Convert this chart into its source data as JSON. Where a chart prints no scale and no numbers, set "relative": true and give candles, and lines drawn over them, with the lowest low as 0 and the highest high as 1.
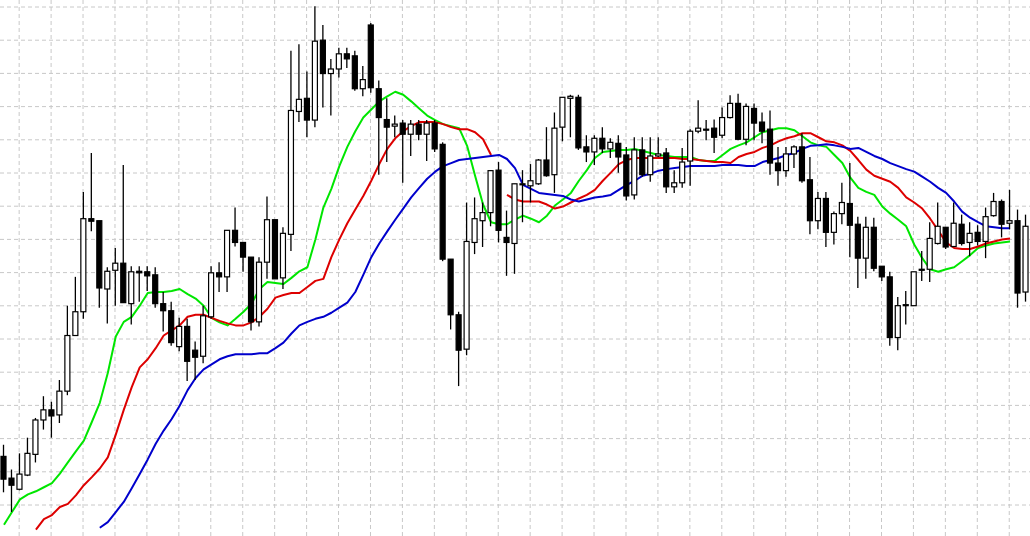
{
  "chart_data": {
    "type": "candlestick",
    "relative": true,
    "grid": true,
    "tick_labels": false,
    "categories": [
      null,
      null,
      null,
      null,
      null,
      null,
      null,
      null,
      null,
      null,
      null,
      null,
      null,
      null,
      null,
      null,
      null,
      null,
      null,
      null,
      null,
      null,
      null,
      null,
      null,
      null,
      null,
      null,
      null,
      null,
      null,
      null,
      null,
      null,
      null,
      null,
      null,
      null,
      null,
      null,
      null,
      null,
      null,
      null,
      null,
      null,
      null,
      null,
      null,
      null,
      null,
      null,
      null,
      null,
      null,
      null,
      null,
      null,
      null,
      null,
      null,
      null,
      null,
      null,
      null,
      null,
      null,
      null,
      null,
      null,
      null,
      null,
      null,
      null,
      null,
      null,
      null,
      null,
      null,
      null,
      null,
      null,
      null,
      null,
      null,
      null,
      null,
      null,
      null,
      null,
      null,
      null,
      null,
      null,
      null,
      null,
      null,
      null,
      null,
      null,
      null,
      null,
      null,
      null,
      null,
      null,
      null,
      null,
      null,
      null,
      null,
      null,
      null,
      null,
      null,
      null,
      null,
      null,
      null,
      null,
      null,
      null,
      null,
      null,
      null,
      null,
      null,
      null,
      null
    ],
    "ohlc": [
      [
        0.11,
        0.133,
        0.039,
        0.065
      ],
      [
        0.067,
        0.084,
        0,
        0.053
      ],
      [
        0.045,
        0.116,
        0.043,
        0.075
      ],
      [
        0.073,
        0.147,
        0.071,
        0.116
      ],
      [
        0.114,
        0.186,
        0.098,
        0.182
      ],
      [
        0.182,
        0.229,
        0.163,
        0.202
      ],
      [
        0.202,
        0.218,
        0.147,
        0.19
      ],
      [
        0.192,
        0.261,
        0.176,
        0.239
      ],
      [
        0.239,
        0.408,
        0.231,
        0.349
      ],
      [
        0.349,
        0.465,
        0.349,
        0.396
      ],
      [
        0.396,
        0.633,
        0.382,
        0.58
      ],
      [
        0.58,
        0.71,
        0.555,
        0.575
      ],
      [
        0.576,
        0.576,
        0.404,
        0.443
      ],
      [
        0.441,
        0.484,
        0.373,
        0.476
      ],
      [
        0.478,
        0.522,
        0.408,
        0.492
      ],
      [
        0.492,
        0.686,
        0.414,
        0.414
      ],
      [
        0.412,
        0.486,
        0.371,
        0.475
      ],
      [
        0.476,
        0.486,
        0.416,
        0.473
      ],
      [
        0.475,
        0.486,
        0.437,
        0.467
      ],
      [
        0.469,
        0.484,
        0.404,
        0.412
      ],
      [
        0.412,
        0.435,
        0.357,
        0.398
      ],
      [
        0.398,
        0.416,
        0.329,
        0.335
      ],
      [
        0.327,
        0.384,
        0.318,
        0.367
      ],
      [
        0.367,
        0.382,
        0.259,
        0.298
      ],
      [
        0.32,
        0.337,
        0.261,
        0.306
      ],
      [
        0.308,
        0.408,
        0.294,
        0.388
      ],
      [
        0.386,
        0.486,
        0.382,
        0.473
      ],
      [
        0.473,
        0.494,
        0.435,
        0.465
      ],
      [
        0.465,
        0.557,
        0.435,
        0.557
      ],
      [
        0.557,
        0.602,
        0.525,
        0.533
      ],
      [
        0.533,
        0.533,
        0.475,
        0.504
      ],
      [
        0.504,
        0.504,
        0.359,
        0.376
      ],
      [
        0.376,
        0.504,
        0.367,
        0.494
      ],
      [
        0.494,
        0.624,
        0.461,
        0.578
      ],
      [
        0.578,
        0.578,
        0.461,
        0.461
      ],
      [
        0.463,
        0.563,
        0.441,
        0.551
      ],
      [
        0.549,
        0.912,
        0.516,
        0.794
      ],
      [
        0.792,
        0.925,
        0.771,
        0.816
      ],
      [
        0.818,
        0.871,
        0.741,
        0.775
      ],
      [
        0.775,
        1,
        0.761,
        0.931
      ],
      [
        0.933,
        0.963,
        0.8,
        0.867
      ],
      [
        0.867,
        0.896,
        0.784,
        0.876
      ],
      [
        0.876,
        0.918,
        0.859,
        0.906
      ],
      [
        0.906,
        0.918,
        0.878,
        0.896
      ],
      [
        0.902,
        0.912,
        0.833,
        0.837
      ],
      [
        0.837,
        0.882,
        0.822,
        0.855
      ],
      [
        0.963,
        0.967,
        0.829,
        0.839
      ],
      [
        0.837,
        0.853,
        0.667,
        0.78
      ],
      [
        0.776,
        0.818,
        0.692,
        0.761
      ],
      [
        0.763,
        0.784,
        0.741,
        0.767
      ],
      [
        0.769,
        0.775,
        0.651,
        0.747
      ],
      [
        0.747,
        0.775,
        0.704,
        0.767
      ],
      [
        0.767,
        0.775,
        0.735,
        0.747
      ],
      [
        0.747,
        0.775,
        0.694,
        0.769
      ],
      [
        0.769,
        0.775,
        0.712,
        0.718
      ],
      [
        0.727,
        0.731,
        0.496,
        0.5
      ],
      [
        0.5,
        0.5,
        0.361,
        0.39
      ],
      [
        0.39,
        0.396,
        0.249,
        0.32
      ],
      [
        0.322,
        0.612,
        0.31,
        0.535
      ],
      [
        0.533,
        0.622,
        0.51,
        0.58
      ],
      [
        0.576,
        0.612,
        0.524,
        0.592
      ],
      [
        0.592,
        0.676,
        0.565,
        0.675
      ],
      [
        0.676,
        0.692,
        0.533,
        0.557
      ],
      [
        0.543,
        0.596,
        0.467,
        0.533
      ],
      [
        0.531,
        0.649,
        0.471,
        0.649
      ],
      [
        0.647,
        0.676,
        0.573,
        0.649
      ],
      [
        0.645,
        0.688,
        0.612,
        0.655
      ],
      [
        0.649,
        0.698,
        0.647,
        0.696
      ],
      [
        0.696,
        0.761,
        0.663,
        0.665
      ],
      [
        0.667,
        0.79,
        0.631,
        0.759
      ],
      [
        0.761,
        0.82,
        0.733,
        0.82
      ],
      [
        0.818,
        0.825,
        0.741,
        0.822
      ],
      [
        0.82,
        0.825,
        0.716,
        0.72
      ],
      [
        0.722,
        0.745,
        0.692,
        0.712
      ],
      [
        0.712,
        0.745,
        0.686,
        0.739
      ],
      [
        0.739,
        0.761,
        0.71,
        0.718
      ],
      [
        0.718,
        0.739,
        0.7,
        0.731
      ],
      [
        0.729,
        0.745,
        0.671,
        0.702
      ],
      [
        0.706,
        0.722,
        0.616,
        0.625
      ],
      [
        0.627,
        0.741,
        0.618,
        0.716
      ],
      [
        0.716,
        0.741,
        0.663,
        0.667
      ],
      [
        0.667,
        0.741,
        0.653,
        0.704
      ],
      [
        0.704,
        0.741,
        0.702,
        0.708
      ],
      [
        0.71,
        0.72,
        0.631,
        0.643
      ],
      [
        0.643,
        0.676,
        0.631,
        0.651
      ],
      [
        0.651,
        0.72,
        0.641,
        0.692
      ],
      [
        0.694,
        0.757,
        0.645,
        0.753
      ],
      [
        0.753,
        0.814,
        0.749,
        0.759
      ],
      [
        0.757,
        0.775,
        0.735,
        0.755
      ],
      [
        0.759,
        0.776,
        0.71,
        0.741
      ],
      [
        0.745,
        0.8,
        0.739,
        0.78
      ],
      [
        0.78,
        0.824,
        0.778,
        0.808
      ],
      [
        0.808,
        0.827,
        0.735,
        0.737
      ],
      [
        0.737,
        0.808,
        0.725,
        0.802
      ],
      [
        0.798,
        0.808,
        0.735,
        0.769
      ],
      [
        0.771,
        0.79,
        0.729,
        0.753
      ],
      [
        0.757,
        0.794,
        0.667,
        0.69
      ],
      [
        0.69,
        0.722,
        0.645,
        0.675
      ],
      [
        0.675,
        0.722,
        0.663,
        0.708
      ],
      [
        0.708,
        0.725,
        0.68,
        0.722
      ],
      [
        0.722,
        0.749,
        0.651,
        0.655
      ],
      [
        0.657,
        0.702,
        0.549,
        0.576
      ],
      [
        0.576,
        0.633,
        0.559,
        0.62
      ],
      [
        0.62,
        0.633,
        0.524,
        0.553
      ],
      [
        0.553,
        0.594,
        0.529,
        0.59
      ],
      [
        0.59,
        0.651,
        0.569,
        0.612
      ],
      [
        0.61,
        0.69,
        0.504,
        0.567
      ],
      [
        0.569,
        0.584,
        0.443,
        0.502
      ],
      [
        0.502,
        0.584,
        0.461,
        0.563
      ],
      [
        0.563,
        0.582,
        0.476,
        0.482
      ],
      [
        0.486,
        0.486,
        0.457,
        0.465
      ],
      [
        0.465,
        0.475,
        0.329,
        0.345
      ],
      [
        0.345,
        0.425,
        0.32,
        0.408
      ],
      [
        0.408,
        0.437,
        0.371,
        0.41
      ],
      [
        0.408,
        0.475,
        0.408,
        0.475
      ],
      [
        0.48,
        0.516,
        0.457,
        0.478
      ],
      [
        0.48,
        0.573,
        0.455,
        0.541
      ],
      [
        0.531,
        0.612,
        0.529,
        0.565
      ],
      [
        0.563,
        0.563,
        0.52,
        0.524
      ],
      [
        0.525,
        0.612,
        0.524,
        0.571
      ],
      [
        0.569,
        0.588,
        0.527,
        0.531
      ],
      [
        0.533,
        0.573,
        0.506,
        0.551
      ],
      [
        0.553,
        0.567,
        0.527,
        0.535
      ],
      [
        0.535,
        0.602,
        0.502,
        0.584
      ],
      [
        0.586,
        0.631,
        0.584,
        0.614
      ],
      [
        0.614,
        0.618,
        0.543,
        0.569
      ],
      [
        0.571,
        0.637,
        0.559,
        0.576
      ],
      [
        0.576,
        0.598,
        0.404,
        0.433
      ],
      [
        0.435,
        0.588,
        0.416,
        0.565
      ]
    ],
    "series": [
      {
        "type": "line",
        "color": "#00e600",
        "values": [
          -0.025,
          0,
          0.025,
          0.035,
          0.041,
          0.049,
          0.057,
          0.076,
          0.098,
          0.12,
          0.141,
          0.178,
          0.216,
          0.275,
          0.347,
          0.376,
          0.386,
          0.408,
          0.433,
          0.435,
          0.435,
          0.437,
          0.441,
          0.431,
          0.422,
          0.408,
          0.384,
          0.375,
          0.369,
          0.382,
          0.396,
          0.412,
          0.441,
          0.455,
          0.453,
          0.451,
          0.463,
          0.476,
          0.484,
          0.539,
          0.602,
          0.639,
          0.684,
          0.722,
          0.753,
          0.78,
          0.796,
          0.812,
          0.822,
          0.831,
          0.825,
          0.812,
          0.798,
          0.784,
          0.775,
          0.767,
          0.763,
          0.759,
          0.724,
          0.665,
          0.608,
          0.573,
          0.569,
          0.569,
          0.578,
          0.586,
          0.58,
          0.573,
          0.586,
          0.606,
          0.618,
          0.631,
          0.655,
          0.676,
          0.7,
          0.712,
          0.714,
          0.716,
          0.716,
          0.718,
          0.714,
          0.71,
          0.706,
          0.704,
          0.702,
          0.702,
          0.702,
          0.696,
          0.694,
          0.694,
          0.706,
          0.718,
          0.725,
          0.731,
          0.741,
          0.751,
          0.755,
          0.759,
          0.759,
          0.755,
          0.743,
          0.731,
          0.725,
          0.722,
          0.706,
          0.69,
          0.661,
          0.641,
          0.633,
          0.627,
          0.604,
          0.59,
          0.578,
          0.565,
          0.529,
          0.502,
          0.48,
          0.475,
          0.48,
          0.484,
          0.496,
          0.508,
          0.522,
          0.527,
          0.531,
          0.533,
          0.535,
          null,
          null
        ]
      },
      {
        "type": "line",
        "color": "#dd0000",
        "values": [
          null,
          null,
          null,
          null,
          -0.035,
          -0.014,
          -0.006,
          0.01,
          0.016,
          0.033,
          0.053,
          0.069,
          0.086,
          0.108,
          0.153,
          0.202,
          0.247,
          0.286,
          0.302,
          0.324,
          0.349,
          0.359,
          0.369,
          0.386,
          0.39,
          0.39,
          0.384,
          0.378,
          0.373,
          0.369,
          0.369,
          0.375,
          0.386,
          0.402,
          0.424,
          0.429,
          0.433,
          0.433,
          0.445,
          0.457,
          0.461,
          0.504,
          0.539,
          0.571,
          0.598,
          0.625,
          0.655,
          0.688,
          0.718,
          0.739,
          0.753,
          0.763,
          0.771,
          0.771,
          0.771,
          0.767,
          0.761,
          0.757,
          0.757,
          0.751,
          0.737,
          0.706,
          null,
          0.627,
          0.618,
          0.614,
          0.614,
          0.614,
          0.608,
          0.6,
          0.604,
          0.612,
          0.62,
          0.627,
          0.637,
          0.655,
          0.671,
          0.688,
          0.696,
          0.7,
          0.7,
          0.7,
          0.7,
          0.7,
          0.7,
          0.698,
          0.698,
          0.696,
          0.694,
          0.692,
          0.692,
          0.69,
          0.702,
          0.708,
          0.712,
          0.72,
          0.725,
          0.733,
          0.739,
          0.743,
          0.749,
          0.749,
          0.741,
          0.733,
          0.731,
          0.725,
          0.714,
          0.696,
          0.677,
          0.665,
          0.659,
          0.653,
          0.641,
          0.622,
          0.612,
          0.6,
          0.58,
          0.557,
          0.533,
          0.522,
          0.52,
          0.52,
          0.525,
          0.531,
          0.535,
          0.539,
          0.541,
          null,
          null
        ]
      },
      {
        "type": "line",
        "color": "#0000cc",
        "values": [
          null,
          null,
          null,
          null,
          null,
          null,
          null,
          null,
          null,
          null,
          null,
          null,
          -0.031,
          -0.02,
          0,
          0.02,
          0.047,
          0.075,
          0.104,
          0.135,
          0.161,
          0.184,
          0.21,
          0.241,
          0.265,
          0.282,
          0.292,
          0.302,
          0.308,
          0.312,
          0.312,
          0.312,
          0.314,
          0.314,
          0.324,
          0.335,
          0.353,
          0.369,
          0.376,
          0.382,
          0.386,
          0.394,
          0.404,
          0.414,
          0.435,
          0.469,
          0.504,
          0.531,
          0.555,
          0.578,
          0.6,
          0.622,
          0.641,
          0.659,
          0.673,
          0.684,
          0.69,
          0.696,
          0.698,
          0.7,
          0.702,
          0.704,
          0.706,
          0.698,
          0.68,
          0.647,
          0.639,
          0.631,
          0.629,
          0.627,
          0.625,
          0.618,
          0.614,
          0.618,
          0.622,
          0.624,
          0.627,
          0.637,
          0.647,
          0.655,
          0.665,
          0.669,
          0.675,
          0.678,
          0.68,
          0.682,
          0.684,
          0.684,
          0.684,
          0.684,
          0.686,
          0.686,
          0.686,
          0.684,
          0.684,
          0.692,
          0.696,
          0.7,
          0.706,
          0.71,
          0.718,
          0.724,
          0.725,
          0.727,
          0.725,
          0.722,
          0.718,
          0.72,
          0.712,
          0.704,
          0.698,
          0.69,
          0.684,
          0.678,
          0.673,
          0.663,
          0.653,
          0.641,
          0.631,
          0.614,
          0.594,
          0.582,
          0.573,
          0.565,
          0.563,
          0.561,
          0.561,
          null,
          null
        ]
      }
    ]
  }
}
